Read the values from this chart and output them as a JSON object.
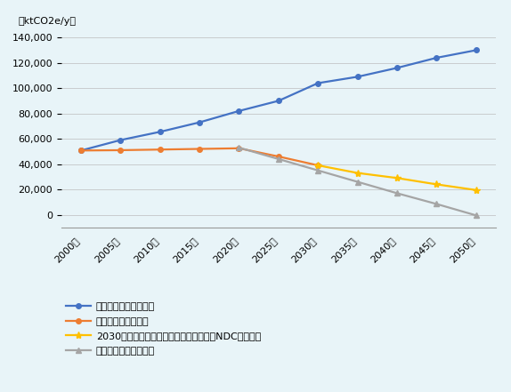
{
  "years": [
    2000,
    2005,
    2010,
    2015,
    2020,
    2025,
    2030,
    2035,
    2040,
    2045,
    2050
  ],
  "baseline": [
    50743,
    59000,
    65500,
    73000,
    82000,
    90000,
    104000,
    109000,
    116000,
    124000,
    130000
  ],
  "unconditional": [
    50743,
    51000,
    51500,
    52000,
    52500,
    46000,
    39000,
    null,
    null,
    null,
    null
  ],
  "conditional_ndc": [
    null,
    null,
    null,
    null,
    null,
    null,
    39000,
    33000,
    29000,
    24000,
    19500
  ],
  "conditional": [
    null,
    null,
    null,
    null,
    53000,
    44000,
    35000,
    26000,
    17000,
    8500,
    -500
  ],
  "series_colors": {
    "baseline": "#4472C4",
    "unconditional": "#ED7D31",
    "conditional_ndc": "#FFC000",
    "conditional": "#A5A5A5"
  },
  "legend_labels": [
    "ベースラインシナリオ",
    "無条件緩和シナリオ",
    "2030年以降の条件緩和シナリオ（今後のNDCで規定）",
    "条件付き緩和シナリオ"
  ],
  "ylabel": "（ktCO2e/y）",
  "ylim": [
    -10000,
    148000
  ],
  "yticks": [
    0,
    20000,
    40000,
    60000,
    80000,
    100000,
    120000,
    140000
  ],
  "background_color": "#E8F4F8",
  "grid_color": "#BBBBBB",
  "marker_size": 4,
  "linewidth": 1.6
}
